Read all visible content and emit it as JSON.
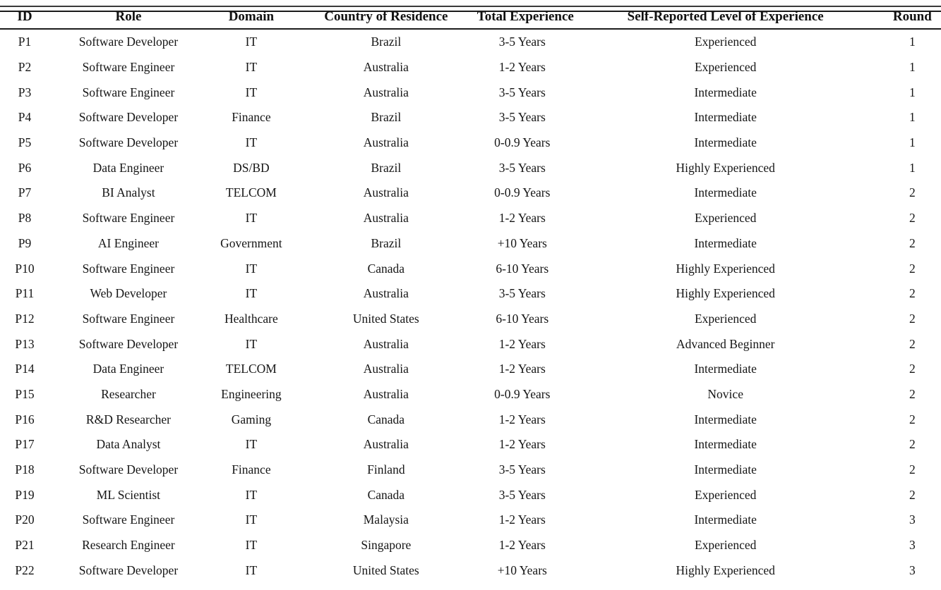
{
  "table": {
    "columns": [
      "ID",
      "Role",
      "Domain",
      "Country of Residence",
      "Total Experience",
      "Self-Reported Level of Experience",
      "Round"
    ],
    "rows": [
      [
        "P1",
        "Software Developer",
        "IT",
        "Brazil",
        "3-5 Years",
        "Experienced",
        "1"
      ],
      [
        "P2",
        "Software Engineer",
        "IT",
        "Australia",
        "1-2 Years",
        "Experienced",
        "1"
      ],
      [
        "P3",
        "Software Engineer",
        "IT",
        "Australia",
        "3-5 Years",
        "Intermediate",
        "1"
      ],
      [
        "P4",
        "Software Developer",
        "Finance",
        "Brazil",
        "3-5 Years",
        "Intermediate",
        "1"
      ],
      [
        "P5",
        "Software Developer",
        "IT",
        "Australia",
        "0-0.9 Years",
        "Intermediate",
        "1"
      ],
      [
        "P6",
        "Data Engineer",
        "DS/BD",
        "Brazil",
        "3-5 Years",
        "Highly Experienced",
        "1"
      ],
      [
        "P7",
        "BI Analyst",
        "TELCOM",
        "Australia",
        "0-0.9 Years",
        "Intermediate",
        "2"
      ],
      [
        "P8",
        "Software Engineer",
        "IT",
        "Australia",
        "1-2 Years",
        "Experienced",
        "2"
      ],
      [
        "P9",
        "AI Engineer",
        "Government",
        "Brazil",
        "+10 Years",
        "Intermediate",
        "2"
      ],
      [
        "P10",
        "Software Engineer",
        "IT",
        "Canada",
        "6-10 Years",
        "Highly Experienced",
        "2"
      ],
      [
        "P11",
        "Web Developer",
        "IT",
        "Australia",
        "3-5 Years",
        "Highly Experienced",
        "2"
      ],
      [
        "P12",
        "Software Engineer",
        "Healthcare",
        "United States",
        "6-10 Years",
        "Experienced",
        "2"
      ],
      [
        "P13",
        "Software Developer",
        "IT",
        "Australia",
        "1-2 Years",
        "Advanced Beginner",
        "2"
      ],
      [
        "P14",
        "Data Engineer",
        "TELCOM",
        "Australia",
        "1-2 Years",
        "Intermediate",
        "2"
      ],
      [
        "P15",
        "Researcher",
        "Engineering",
        "Australia",
        "0-0.9 Years",
        "Novice",
        "2"
      ],
      [
        "P16",
        "R&D Researcher",
        "Gaming",
        "Canada",
        "1-2 Years",
        "Intermediate",
        "2"
      ],
      [
        "P17",
        "Data Analyst",
        "IT",
        "Australia",
        "1-2 Years",
        "Intermediate",
        "2"
      ],
      [
        "P18",
        "Software Developer",
        "Finance",
        "Finland",
        "3-5 Years",
        "Intermediate",
        "2"
      ],
      [
        "P19",
        "ML Scientist",
        "IT",
        "Canada",
        "3-5 Years",
        "Experienced",
        "2"
      ],
      [
        "P20",
        "Software Engineer",
        "IT",
        "Malaysia",
        "1-2 Years",
        "Intermediate",
        "3"
      ],
      [
        "P21",
        "Research Engineer",
        "IT",
        "Singapore",
        "1-2 Years",
        "Experienced",
        "3"
      ],
      [
        "P22",
        "Software Developer",
        "IT",
        "United States",
        "+10 Years",
        "Highly Experienced",
        "3"
      ]
    ]
  }
}
